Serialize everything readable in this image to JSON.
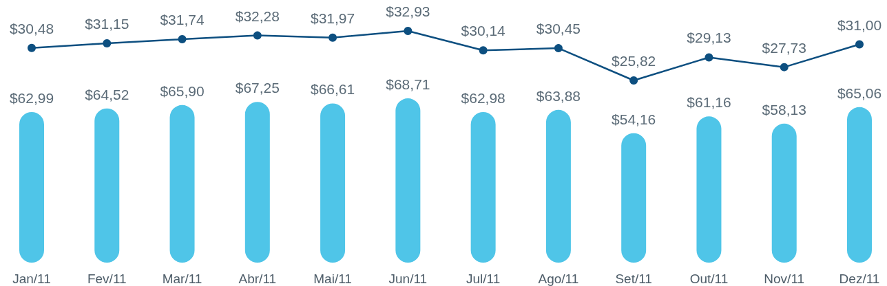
{
  "chart_data": [
    {
      "type": "line",
      "categories": [
        null,
        null,
        null,
        null,
        null,
        null,
        null,
        null,
        null,
        null,
        null,
        null
      ],
      "tick_labels": false,
      "marker": "circle",
      "series": [
        {
          "color": "#0d4f80",
          "values": [
            30.48,
            31.15,
            31.74,
            32.28,
            31.97,
            32.93,
            30.14,
            30.45,
            25.82,
            29.13,
            27.73,
            31.0
          ],
          "value_labels": [
            "$30,48",
            "$31,15",
            "$31,74",
            "$32,28",
            "$31,97",
            "$32,93",
            "$30,14",
            "$30,45",
            "$25,82",
            "$29,13",
            "$27,73",
            "$31,00"
          ]
        }
      ]
    },
    {
      "type": "bar",
      "categories": [
        "Jan/11",
        "Fev/11",
        "Mar/11",
        "Abr/11",
        "Mai/11",
        "Jun/11",
        "Jul/11",
        "Ago/11",
        "Set/11",
        "Out/11",
        "Nov/11",
        "Dez/11"
      ],
      "tick_labels": "x",
      "series": [
        {
          "color": "#4fc5e8",
          "values": [
            62.99,
            64.52,
            65.9,
            67.25,
            66.61,
            68.71,
            62.98,
            63.88,
            54.16,
            61.16,
            58.13,
            65.06
          ],
          "value_labels": [
            "$62,99",
            "$64,52",
            "$65,90",
            "$67,25",
            "$66,61",
            "$68,71",
            "$62,98",
            "$63,88",
            "$54,16",
            "$61,16",
            "$58,13",
            "$65,06"
          ]
        }
      ]
    }
  ]
}
